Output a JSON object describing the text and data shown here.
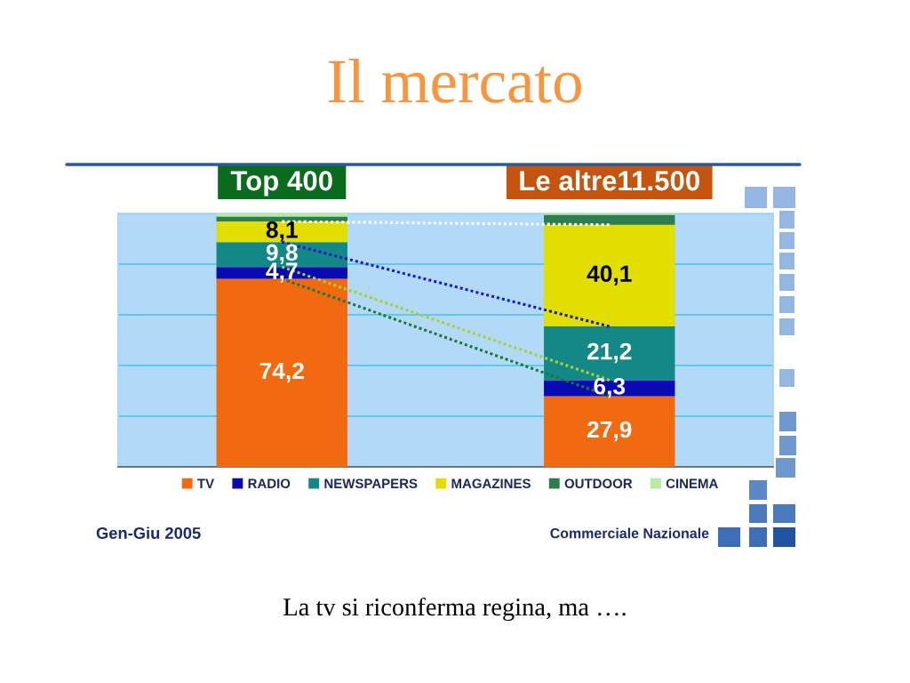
{
  "chart_data": {
    "type": "bar",
    "stacked": true,
    "title": "Il mercato",
    "categories": [
      "Top 400",
      "Le altre11.500"
    ],
    "series": [
      {
        "name": "TV",
        "color": "#f26a10",
        "values": [
          74.2,
          27.9
        ],
        "value_labels": [
          "74,2",
          "27,9"
        ]
      },
      {
        "name": "RADIO",
        "color": "#0a0ab4",
        "values": [
          4.7,
          6.3
        ],
        "value_labels": [
          "4,7",
          "6,3"
        ]
      },
      {
        "name": "NEWSPAPERS",
        "color": "#138886",
        "values": [
          9.8,
          21.2
        ],
        "value_labels": [
          "9,8",
          "21,2"
        ]
      },
      {
        "name": "MAGAZINES",
        "color": "#e2de00",
        "values": [
          8.1,
          40.1
        ],
        "value_labels": [
          "8,1",
          "40,1"
        ]
      },
      {
        "name": "OUTDOOR",
        "color": "#2e7d50",
        "values": [
          2.0,
          4.0
        ],
        "value_labels": [
          null,
          null
        ]
      },
      {
        "name": "CINEMA",
        "color": "#b4eca0",
        "values": [
          1.2,
          0.5
        ],
        "value_labels": [
          null,
          null
        ]
      },
      {
        "type": "line",
        "color": "#1a7a30",
        "line_style": "dotted",
        "values": [
          74.2,
          27.9
        ]
      },
      {
        "type": "line",
        "color": "#a8d030",
        "line_style": "dotted",
        "values": [
          78.9,
          34.2
        ]
      },
      {
        "type": "line",
        "color": "#1a1acc",
        "line_style": "dotted",
        "values": [
          88.7,
          55.4
        ]
      },
      {
        "type": "line",
        "color": "#ffffff",
        "line_style": "dotted",
        "values": [
          96.8,
          95.5
        ]
      }
    ],
    "ylim": [
      0,
      100
    ],
    "yticks": [
      {
        "value": 0,
        "label": null
      },
      {
        "value": 20,
        "label": null
      },
      {
        "value": 40,
        "label": null
      },
      {
        "value": 60,
        "label": null
      },
      {
        "value": 80,
        "label": null
      },
      {
        "value": 100,
        "label": null
      }
    ],
    "grid": "y",
    "legend": "bottom",
    "tick_labels": "x",
    "annotations": [
      "Gen-Giu 2005",
      "Commerciale Nazionale",
      "La tv si riconferma regina, ma …."
    ]
  }
}
